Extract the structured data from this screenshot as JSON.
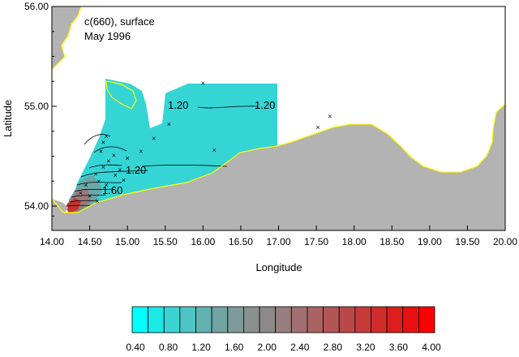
{
  "annotation": {
    "line1": "c(660), surface",
    "line2": "May 1996"
  },
  "axes": {
    "xlabel": "Longitude",
    "ylabel": "Latitude",
    "x_ticks": [
      "14.00",
      "14.50",
      "15.00",
      "15.50",
      "16.00",
      "16.50",
      "17.00",
      "17.50",
      "18.00",
      "18.50",
      "19.00",
      "19.50",
      "20.00"
    ],
    "y_ticks": [
      "54.00",
      "55.00",
      "56.00"
    ]
  },
  "contour_labels": [
    "1.20",
    "1.20",
    "1.20",
    "1.60"
  ],
  "colorbar": {
    "labels": [
      "0.40",
      "0.80",
      "1.20",
      "1.60",
      "2.00",
      "2.40",
      "2.80",
      "3.20",
      "3.60",
      "4.00"
    ],
    "colors": [
      "#00ffff",
      "#1ce8e8",
      "#3ad2d2",
      "#4fc4c4",
      "#63b2b2",
      "#72a4a4",
      "#7f9a9a",
      "#889090",
      "#8f8888",
      "#987f7f",
      "#a27070",
      "#ab6262",
      "#b25555",
      "#bb4848",
      "#c63a3a",
      "#d12c2c",
      "#dc1e1e",
      "#e81010",
      "#ff0000"
    ]
  },
  "map_colors": {
    "land": "#b3b3b3",
    "sea": "#ffffff",
    "coast": "#ffff00",
    "field": "#35d5d5",
    "high": "#c43030"
  },
  "chart_data": {
    "type": "heatmap",
    "title": "c(660), surface",
    "subtitle": "May 1996",
    "xlabel": "Longitude",
    "ylabel": "Latitude",
    "xlim": [
      14.0,
      20.0
    ],
    "ylim": [
      53.8,
      56.0
    ],
    "colorbar_range": [
      0.4,
      4.0
    ],
    "contour_levels_labeled": [
      1.2,
      1.6
    ],
    "stations": [
      {
        "lon": 16.0,
        "lat": 55.23
      },
      {
        "lon": 15.55,
        "lat": 54.82
      },
      {
        "lon": 16.15,
        "lat": 54.56
      },
      {
        "lon": 15.35,
        "lat": 54.68
      },
      {
        "lon": 15.18,
        "lat": 54.55
      },
      {
        "lon": 15.0,
        "lat": 54.48
      },
      {
        "lon": 14.72,
        "lat": 54.7
      },
      {
        "lon": 14.68,
        "lat": 54.64
      },
      {
        "lon": 14.65,
        "lat": 54.55
      },
      {
        "lon": 14.82,
        "lat": 54.51
      },
      {
        "lon": 14.75,
        "lat": 54.45
      },
      {
        "lon": 14.68,
        "lat": 54.39
      },
      {
        "lon": 14.58,
        "lat": 54.32
      },
      {
        "lon": 14.62,
        "lat": 54.25
      },
      {
        "lon": 14.72,
        "lat": 54.21
      },
      {
        "lon": 14.84,
        "lat": 54.31
      },
      {
        "lon": 14.9,
        "lat": 54.36
      },
      {
        "lon": 14.95,
        "lat": 54.26
      },
      {
        "lon": 14.45,
        "lat": 54.21
      },
      {
        "lon": 14.38,
        "lat": 54.13
      },
      {
        "lon": 14.5,
        "lat": 54.1
      },
      {
        "lon": 14.6,
        "lat": 54.05
      },
      {
        "lon": 17.52,
        "lat": 54.79
      },
      {
        "lon": 17.68,
        "lat": 54.9
      }
    ]
  }
}
